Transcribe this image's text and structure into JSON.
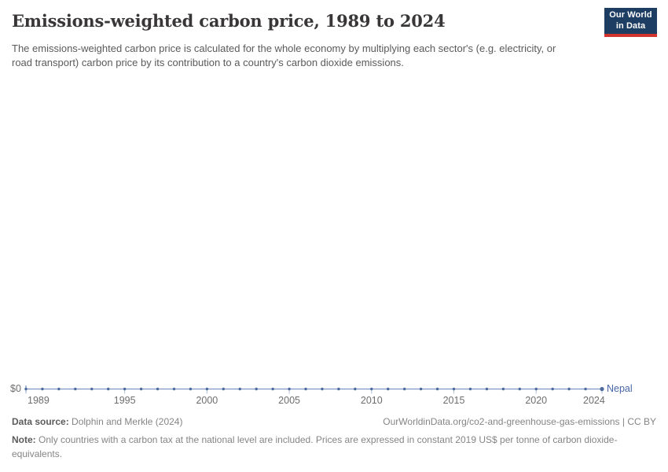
{
  "header": {
    "title": "Emissions-weighted carbon price, 1989 to 2024",
    "subtitle": "The emissions-weighted carbon price is calculated for the whole economy by multiplying each sector's (e.g. electricity, or road transport) carbon price by its contribution to a country's carbon dioxide emissions.",
    "logo": {
      "line1": "Our World",
      "line2": "in Data",
      "bg_color": "#1d3d63",
      "accent_color": "#d0342c"
    }
  },
  "chart_data": {
    "type": "line",
    "title": "Emissions-weighted carbon price, 1989 to 2024",
    "x": [
      1989,
      1990,
      1991,
      1992,
      1993,
      1994,
      1995,
      1996,
      1997,
      1998,
      1999,
      2000,
      2001,
      2002,
      2003,
      2004,
      2005,
      2006,
      2007,
      2008,
      2009,
      2010,
      2011,
      2012,
      2013,
      2014,
      2015,
      2016,
      2017,
      2018,
      2019,
      2020,
      2021,
      2022,
      2023,
      2024
    ],
    "series": [
      {
        "name": "Nepal",
        "color": "#4c6a9c",
        "label_color": "#4766a8",
        "values": [
          0,
          0,
          0,
          0,
          0,
          0,
          0,
          0,
          0,
          0,
          0,
          0,
          0,
          0,
          0,
          0,
          0,
          0,
          0,
          0,
          0,
          0,
          0,
          0,
          0,
          0,
          0,
          0,
          0,
          0,
          0,
          0,
          0,
          0,
          0,
          0
        ]
      }
    ],
    "x_tick_labels": [
      "1989",
      "1995",
      "2000",
      "2005",
      "2010",
      "2015",
      "2020",
      "2024"
    ],
    "y_tick_label": "$0",
    "xlim": [
      1989,
      2024
    ],
    "ylim": [
      0,
      0
    ],
    "grid": false,
    "legend_position": "end-of-line"
  },
  "footer": {
    "data_source_label": "Data source:",
    "data_source_value": "Dolphin and Merkle (2024)",
    "link": "OurWorldinData.org/co2-and-greenhouse-gas-emissions | CC BY",
    "note_label": "Note:",
    "note_text": "Only countries with a carbon tax at the national level are included. Prices are expressed in constant 2019 US$ per tonne of carbon dioxide-equivalents."
  }
}
